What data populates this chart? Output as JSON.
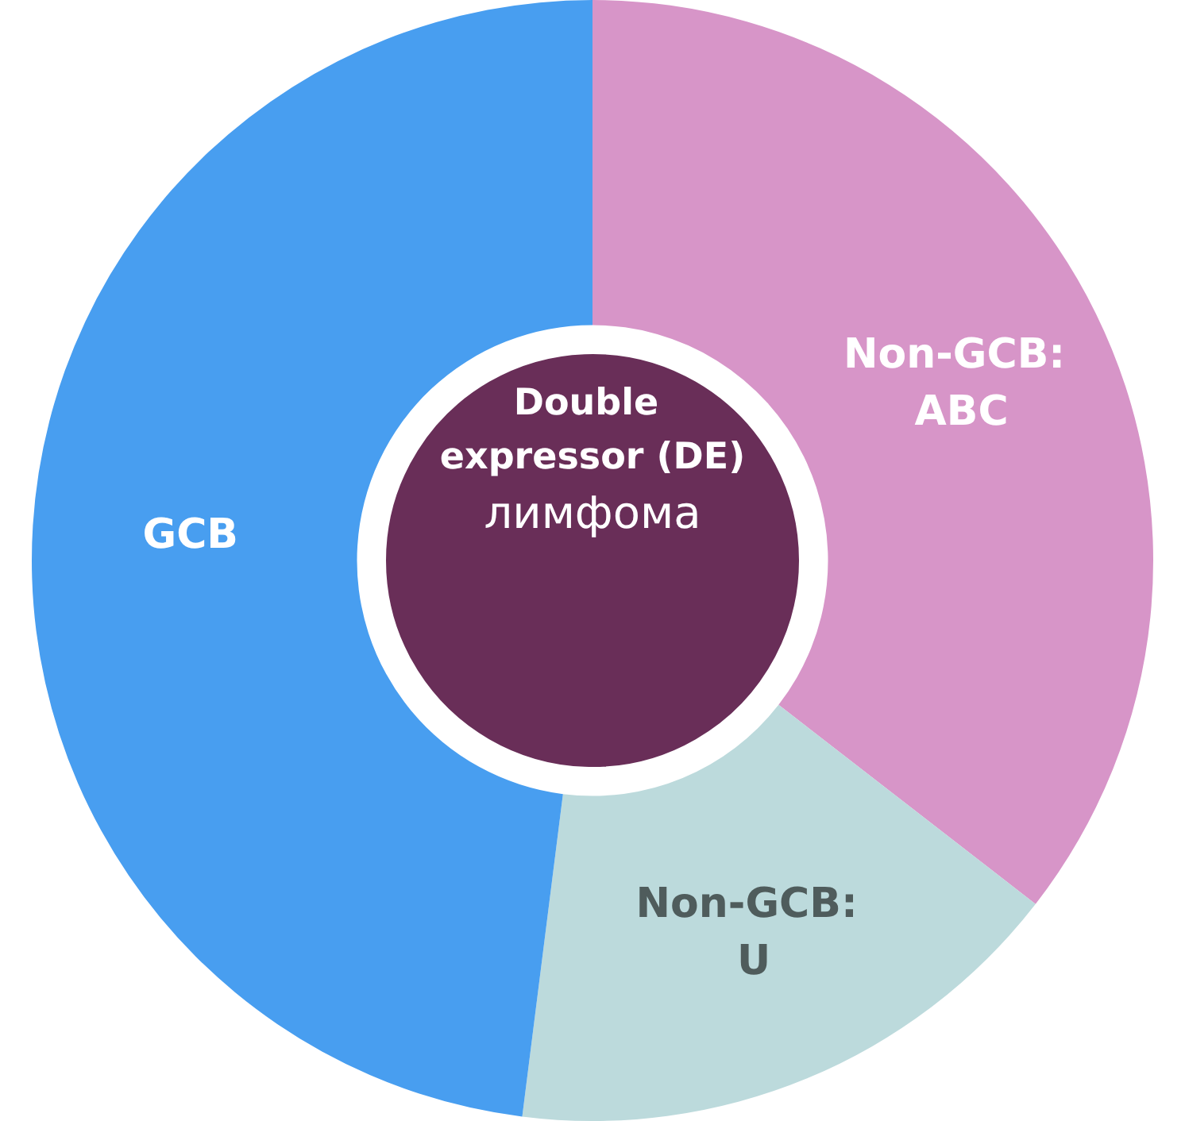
{
  "chart_data": {
    "type": "donut",
    "title": "Double expressor (DE)",
    "subtitle": "лимфома",
    "categories": [
      "Non-GCB: ABC",
      "Non-GCB: U",
      "GCB"
    ],
    "values": [
      35.5,
      16.5,
      48
    ],
    "colors": [
      "#d795c8",
      "#bcdadc",
      "#489ef0"
    ],
    "legend": false
  }
}
